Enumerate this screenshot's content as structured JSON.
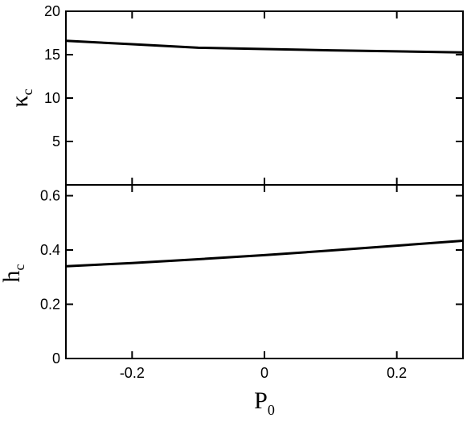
{
  "chart_data": [
    {
      "type": "line",
      "panel": "top",
      "ylabel_main": "κ",
      "ylabel_sub": "c",
      "xlim": [
        -0.3,
        0.3
      ],
      "ylim": [
        0,
        20
      ],
      "yticks": [
        5,
        10,
        15,
        20
      ],
      "ytick_labels": [
        "5",
        "10",
        "15",
        "20"
      ],
      "x_tick_values": [
        -0.2,
        0,
        0.2
      ],
      "grid": false,
      "series": [
        {
          "x": [
            -0.3,
            -0.2,
            -0.1,
            0.0,
            0.1,
            0.2,
            0.3
          ],
          "y": [
            16.6,
            16.2,
            15.8,
            15.65,
            15.5,
            15.38,
            15.25
          ]
        }
      ]
    },
    {
      "type": "line",
      "panel": "bottom",
      "ylabel_main": "h",
      "ylabel_sub": "c",
      "xlabel_main": "P",
      "xlabel_sub": "0",
      "xlim": [
        -0.3,
        0.3
      ],
      "ylim": [
        0,
        0.64
      ],
      "yticks": [
        0,
        0.2,
        0.4,
        0.6
      ],
      "ytick_labels": [
        "0",
        "0.2",
        "0.4",
        "0.6"
      ],
      "xticks": [
        -0.2,
        0,
        0.2
      ],
      "xtick_labels": [
        "-0.2",
        "0",
        "0.2"
      ],
      "grid": false,
      "series": [
        {
          "x": [
            -0.3,
            -0.2,
            -0.1,
            0.0,
            0.1,
            0.2,
            0.3
          ],
          "y": [
            0.34,
            0.352,
            0.366,
            0.381,
            0.398,
            0.416,
            0.434
          ]
        }
      ]
    }
  ]
}
